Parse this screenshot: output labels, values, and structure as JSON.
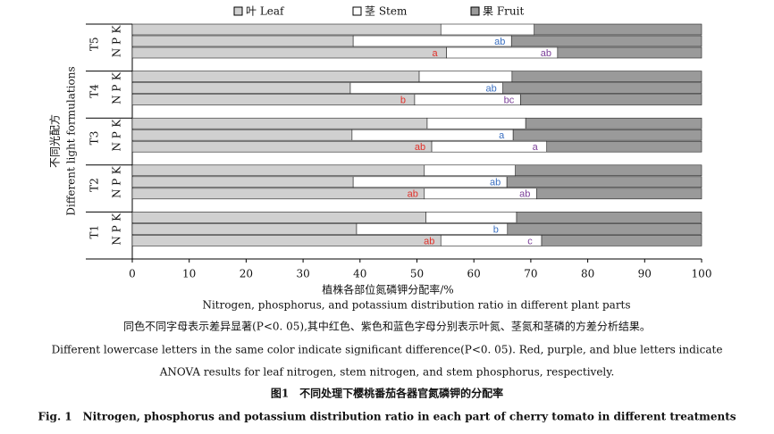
{
  "chart_data": {
    "type": "stacked-barh",
    "legend": "top",
    "groups": [
      "T5",
      "T4",
      "T3",
      "T2",
      "T1"
    ],
    "categories": [
      "K",
      "P",
      "N",
      "K",
      "P",
      "N",
      "K",
      "P",
      "N",
      "K",
      "P",
      "N",
      "K",
      "P",
      "N"
    ],
    "series": [
      {
        "name": "叶 Leaf",
        "color": "#d0d0d0",
        "values": [
          54.2,
          38.8,
          55.2,
          50.4,
          38.3,
          49.6,
          51.8,
          38.6,
          52.6,
          51.3,
          38.8,
          51.3,
          51.6,
          39.4,
          54.2
        ],
        "letters": [
          null,
          null,
          "a",
          null,
          null,
          "b",
          null,
          null,
          "ab",
          null,
          null,
          "ab",
          null,
          null,
          "ab"
        ],
        "letter_colors": [
          null,
          null,
          "#e0312a",
          null,
          null,
          "#e0312a",
          null,
          null,
          "#e0312a",
          null,
          null,
          "#e0312a",
          null,
          null,
          "#e0312a"
        ]
      },
      {
        "name": "茎 Stem",
        "color": "#ffffff",
        "values": [
          16.4,
          27.8,
          19.5,
          16.3,
          26.8,
          18.6,
          17.3,
          28.3,
          20.2,
          16.0,
          27.0,
          19.7,
          15.9,
          26.5,
          17.7
        ],
        "letters": [
          null,
          "ab",
          "ab",
          null,
          "ab",
          "bc",
          null,
          "a",
          "a",
          null,
          "ab",
          "ab",
          null,
          "b",
          "c"
        ],
        "letter_colors": [
          null,
          "#3a6fc0",
          "#7b3f98",
          null,
          "#3a6fc0",
          "#7b3f98",
          null,
          "#3a6fc0",
          "#7b3f98",
          null,
          "#3a6fc0",
          "#7b3f98",
          null,
          "#3a6fc0",
          "#7b3f98"
        ]
      },
      {
        "name": "果 Fruit",
        "color": "#9a9a9a",
        "values": [
          29.4,
          33.4,
          25.3,
          33.3,
          34.9,
          31.8,
          30.9,
          33.1,
          27.2,
          32.7,
          34.2,
          29.0,
          32.5,
          34.1,
          28.1
        ],
        "letters": [
          null,
          null,
          null,
          null,
          null,
          null,
          null,
          null,
          null,
          null,
          null,
          null,
          null,
          null,
          null
        ],
        "letter_colors": [
          null,
          null,
          null,
          null,
          null,
          null,
          null,
          null,
          null,
          null,
          null,
          null,
          null,
          null,
          null
        ]
      }
    ],
    "xlim": [
      0,
      100
    ],
    "xticks": [
      0,
      10,
      20,
      30,
      40,
      50,
      60,
      70,
      80,
      90,
      100
    ],
    "xlabel": [
      "植株各部位氮磷钾分配率/%",
      "Nitrogen, phosphorus, and potassium distribution ratio  in different plant parts"
    ],
    "ylabel": [
      "不同光配方",
      "Different  light formulations"
    ],
    "notes": [
      "同色不同字母表示差异显著(P<0. 05),其中红色、紫色和蓝色字母分别表示叶氮、茎氮和茎磷的方差分析结果。",
      "Different lowercase letters in the same color indicate significant difference(P<0. 05). Red, purple, and blue letters indicate",
      "ANOVA results for leaf nitrogen, stem nitrogen, and stem phosphorus, respectively."
    ],
    "caption": [
      "图1　不同处理下樱桃番茄各器官氮磷钾的分配率",
      "Fig. 1　Nitrogen, phosphorus and potassium distribution ratio in each part of cherry tomato in different treatments"
    ]
  }
}
